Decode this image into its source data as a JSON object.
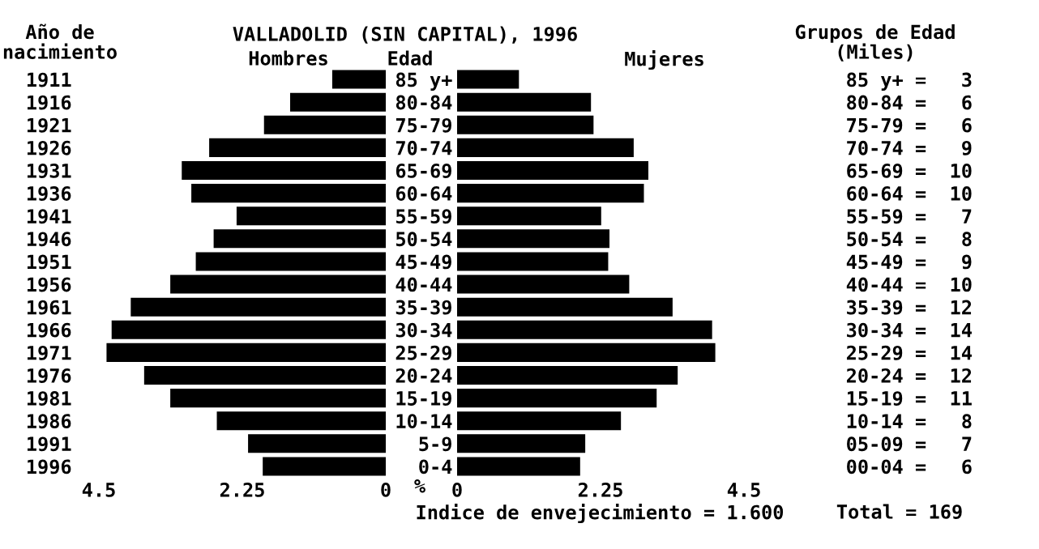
{
  "chart_data": [
    {
      "type": "bar",
      "orientation": "horizontal",
      "title": "VALLADOLID (SIN CAPITAL), 1996",
      "ylabel": "Año de\nnacimiento",
      "categories": [
        "1911",
        "1916",
        "1921",
        "1926",
        "1931",
        "1936",
        "1941",
        "1946",
        "1951",
        "1956",
        "1961",
        "1966",
        "1971",
        "1976",
        "1981",
        "1986",
        "1991",
        "1996"
      ],
      "series": [
        {
          "name": "Hombres",
          "color": "#000000",
          "values": [
            0.84,
            1.5,
            1.91,
            2.77,
            3.2,
            3.05,
            2.34,
            2.7,
            2.98,
            3.38,
            4.0,
            4.3,
            4.38,
            3.79,
            3.38,
            2.65,
            2.16,
            1.93
          ]
        }
      ],
      "xlim": [
        4.5,
        0
      ],
      "xticks": [
        4.5,
        2.25,
        0
      ]
    },
    {
      "type": "bar",
      "orientation": "horizontal",
      "ylabel": "Edad",
      "xlabel": "%",
      "y2label": "Grupos de Edad\n(Miles)",
      "categories": [
        "85 y+",
        "80-84",
        "75-79",
        "70-74",
        "65-69",
        "60-64",
        "55-59",
        "50-54",
        "45-49",
        "40-44",
        "35-39",
        "30-34",
        "25-29",
        "20-24",
        "15-19",
        "10-14",
        "5-9",
        "0-4"
      ],
      "y2_categories": [
        "85 y+ =   3",
        "80-84 =   6",
        "75-79 =   6",
        "70-74 =   9",
        "65-69 =  10",
        "60-64 =  10",
        "55-59 =   7",
        "50-54 =   8",
        "45-49 =   9",
        "40-44 =  10",
        "35-39 =  12",
        "30-34 =  14",
        "25-29 =  14",
        "20-24 =  12",
        "15-19 =  11",
        "10-14 =   8",
        "05-09 =   7",
        "00-04 =   6"
      ],
      "series": [
        {
          "name": "Mujeres",
          "color": "#000000",
          "values": [
            0.97,
            2.1,
            2.14,
            2.77,
            3.0,
            2.93,
            2.26,
            2.39,
            2.37,
            2.7,
            3.38,
            4.0,
            4.05,
            3.46,
            3.13,
            2.57,
            2.01,
            1.93
          ]
        }
      ],
      "xlim": [
        0,
        4.5
      ],
      "xticks": [
        0,
        2.25,
        4.5
      ],
      "annotations": [
        "Indice de envejecimiento = 1.600",
        "Total = 169"
      ]
    }
  ]
}
